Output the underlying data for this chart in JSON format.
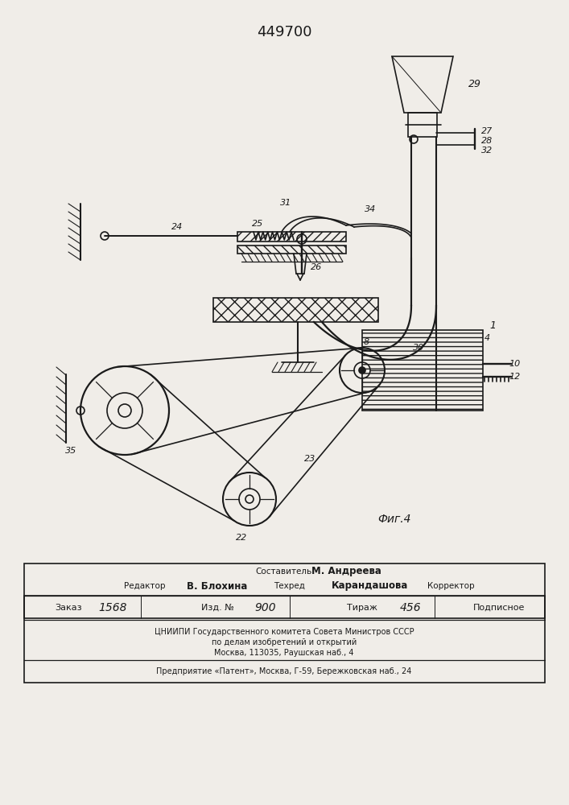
{
  "title": "449700",
  "bg_color": "#f0ede8",
  "line_color": "#1a1a1a",
  "fig_label": "Фиг.4",
  "footer_comp": "Составитель",
  "footer_comp_name": "М. Андреева",
  "footer_red": "Редактор",
  "footer_red_name": "В. Блохина",
  "footer_tech": "Техред",
  "footer_tech_name": "Карандашова",
  "footer_corr": "Корректор",
  "footer_zakaz_label": "Заказ",
  "footer_zakaz_val": "1568",
  "footer_izd_label": "Изд. №",
  "footer_izd_val": "900",
  "footer_tir_label": "Тираж",
  "footer_tir_val": "456",
  "footer_podp": "Подписное",
  "footer_org1": "ЦНИИПИ Государственного комитета Совета Министров СССР",
  "footer_org2": "по делам изобретений и открытий",
  "footer_org3": "Москва, 113035, Раушская наб., 4",
  "footer_pred": "Предприятие «Патент», Москва, Г-59, Бережковская наб., 24"
}
